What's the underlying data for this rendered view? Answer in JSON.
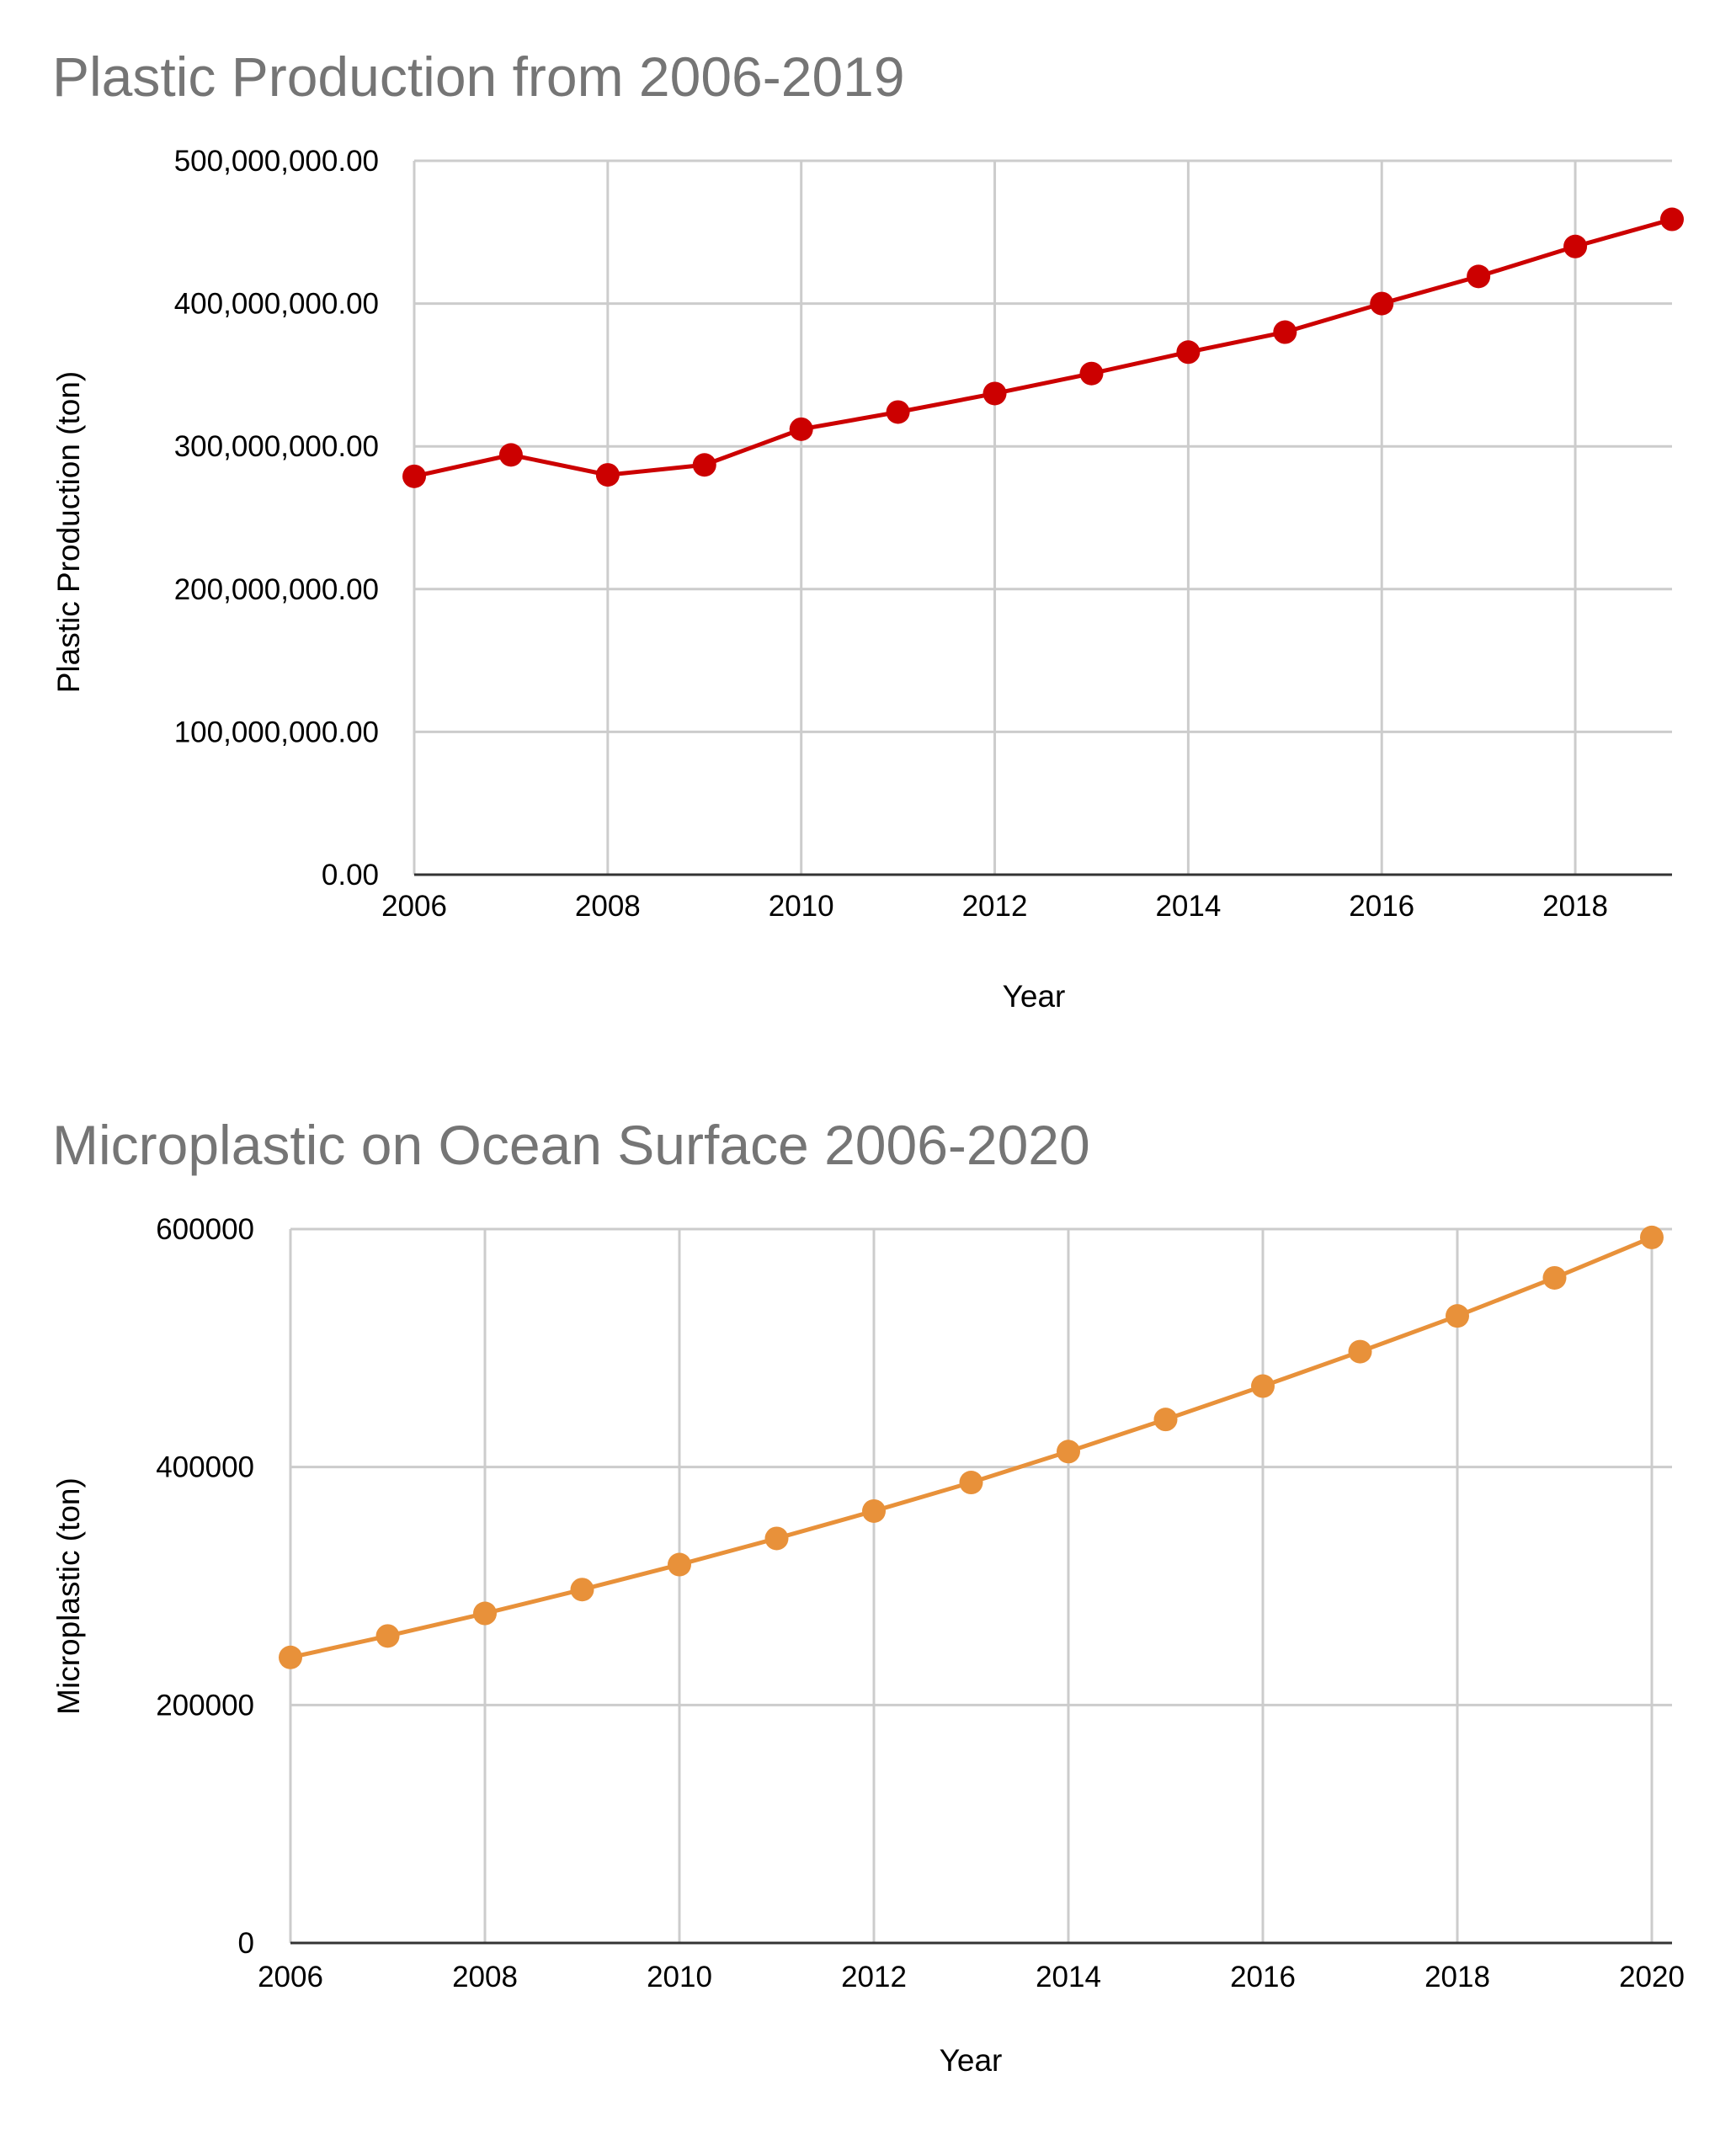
{
  "chart_data": [
    {
      "type": "line",
      "title": "Plastic Production from 2006-2019",
      "xlabel": "Year",
      "ylabel": "Plastic Production (ton)",
      "color": "#cc0000",
      "xlim": [
        2006,
        2019
      ],
      "ylim": [
        0,
        500000000
      ],
      "xticks": [
        2006,
        2008,
        2010,
        2012,
        2014,
        2016,
        2018
      ],
      "xtick_labels": [
        "2006",
        "2008",
        "2010",
        "2012",
        "2014",
        "2016",
        "2018"
      ],
      "yticks": [
        0,
        100000000,
        200000000,
        300000000,
        400000000,
        500000000
      ],
      "ytick_labels": [
        "0.00",
        "100,000,000.00",
        "200,000,000.00",
        "300,000,000.00",
        "400,000,000.00",
        "500,000,000.00"
      ],
      "grid": true,
      "legend": "none",
      "x": [
        2006,
        2007,
        2008,
        2009,
        2010,
        2011,
        2012,
        2013,
        2014,
        2015,
        2016,
        2017,
        2018,
        2019
      ],
      "y": [
        279000000,
        294000000,
        280000000,
        287000000,
        312000000,
        324000000,
        337000000,
        351000000,
        366000000,
        380000000,
        400000000,
        419000000,
        440000000,
        459000000
      ]
    },
    {
      "type": "line",
      "title": "Microplastic on Ocean Surface 2006-2020",
      "xlabel": "Year",
      "ylabel": "Microplastic (ton)",
      "color": "#e8913a",
      "xlim": [
        2006,
        2020
      ],
      "ylim": [
        0,
        600000
      ],
      "xticks": [
        2006,
        2008,
        2010,
        2012,
        2014,
        2016,
        2018,
        2020
      ],
      "xtick_labels": [
        "2006",
        "2008",
        "2010",
        "2012",
        "2014",
        "2016",
        "2018",
        "2020"
      ],
      "yticks": [
        0,
        200000,
        400000,
        600000
      ],
      "ytick_labels": [
        "0",
        "200000",
        "400000",
        "600000"
      ],
      "grid": true,
      "legend": "none",
      "x": [
        2006,
        2007,
        2008,
        2009,
        2010,
        2011,
        2012,
        2013,
        2014,
        2015,
        2016,
        2017,
        2018,
        2019,
        2020
      ],
      "y": [
        240000,
        258000,
        277000,
        297000,
        318000,
        340000,
        363000,
        387000,
        413000,
        440000,
        468000,
        497000,
        527000,
        559000,
        593000
      ]
    }
  ]
}
